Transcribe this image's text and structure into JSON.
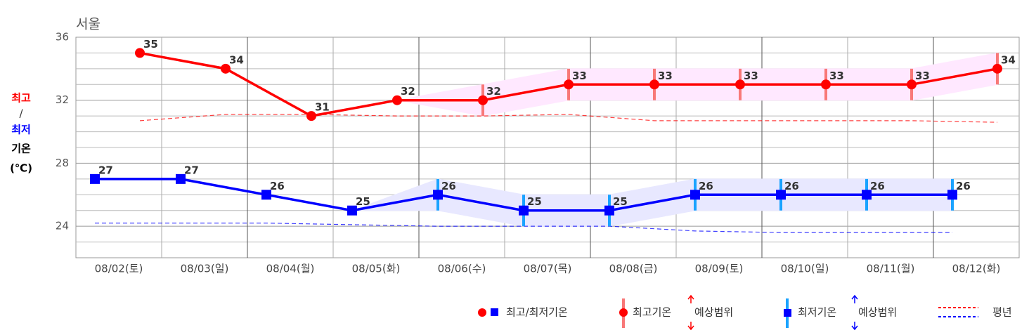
{
  "chart_data": {
    "type": "line",
    "title": "서울",
    "y_label": [
      "최고",
      "/",
      "최저",
      "기온",
      "(℃)"
    ],
    "categories": [
      "08/02(토)",
      "08/03(일)",
      "08/04(월)",
      "08/05(화)",
      "08/06(수)",
      "08/07(목)",
      "08/08(금)",
      "08/09(토)",
      "08/10(일)",
      "08/11(월)",
      "08/12(화)"
    ],
    "ylim": [
      22,
      36
    ],
    "yticks": [
      24,
      28,
      32,
      36
    ],
    "minor_yticks": [
      23,
      25,
      26,
      27,
      29,
      30,
      31,
      33,
      34,
      35
    ],
    "grid": true,
    "series": [
      {
        "name": "최고/최저기온",
        "kind": "high",
        "color": "#ff0000",
        "range_color": "#f87878",
        "band_color": "#ffe8ff",
        "values": [
          35,
          34,
          31,
          32,
          32,
          33,
          33,
          33,
          33,
          33,
          34
        ],
        "range": [
          null,
          null,
          null,
          null,
          [
            31,
            33
          ],
          [
            32,
            34
          ],
          [
            32,
            34
          ],
          [
            32,
            34
          ],
          [
            32,
            34
          ],
          [
            32,
            34
          ],
          [
            33,
            35
          ]
        ],
        "normal": [
          30.7,
          31.1,
          31.1,
          31.0,
          31.0,
          31.1,
          30.7,
          30.7,
          30.7,
          30.7,
          30.6
        ]
      },
      {
        "name": "최고/최저기온",
        "kind": "low",
        "color": "#0000ff",
        "range_color": "#1aa3ff",
        "band_color": "#e8e8ff",
        "values": [
          27,
          27,
          26,
          25,
          26,
          25,
          25,
          26,
          26,
          26,
          26
        ],
        "range": [
          null,
          null,
          null,
          null,
          [
            25,
            27
          ],
          [
            24,
            26
          ],
          [
            24,
            26
          ],
          [
            25,
            27
          ],
          [
            25,
            27
          ],
          [
            25,
            27
          ],
          [
            25,
            27
          ]
        ],
        "normal": [
          24.2,
          24.2,
          24.2,
          24.1,
          24.0,
          24.0,
          24.0,
          23.7,
          23.6,
          23.6,
          23.6
        ]
      }
    ],
    "legend": [
      "최고/최저기온",
      "최고기온",
      "예상범위",
      "최저기온",
      "예상범위",
      "평년"
    ]
  }
}
